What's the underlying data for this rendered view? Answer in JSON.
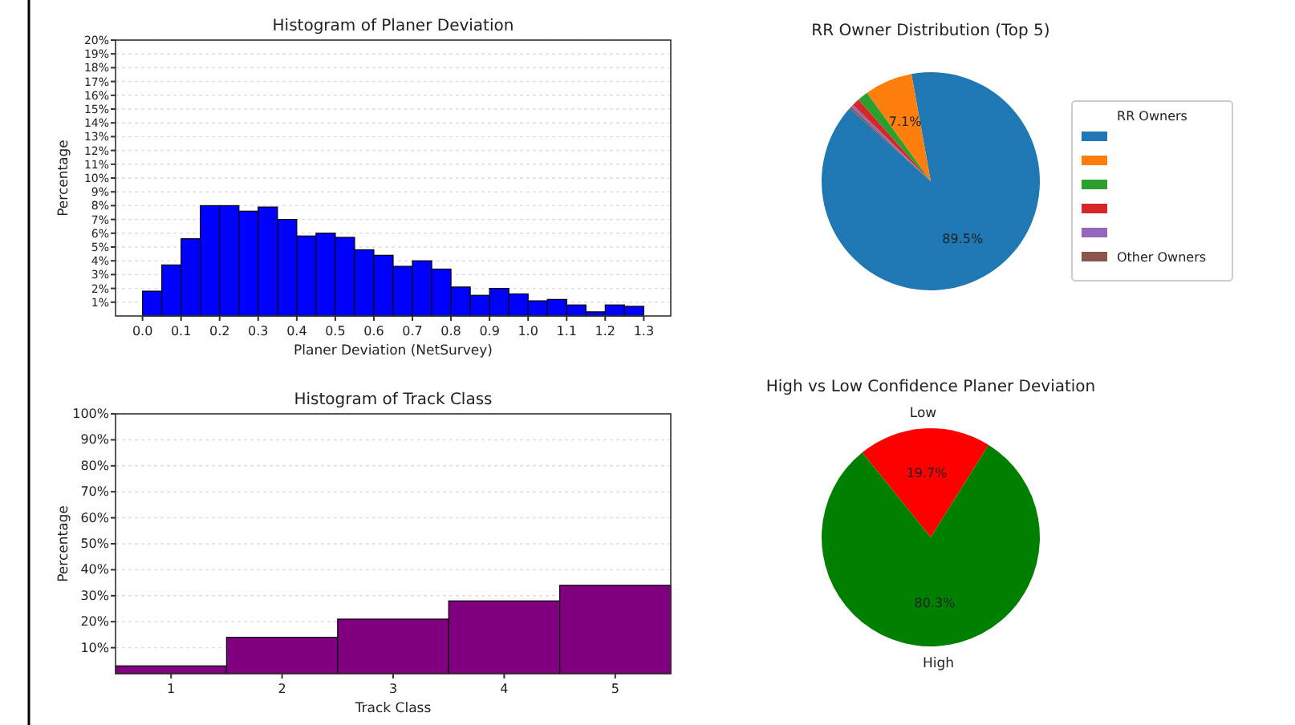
{
  "chart_data": [
    {
      "type": "histogram",
      "title": "Histogram of Planer Deviation",
      "xlabel": "Planer Deviation (NetSurvey)",
      "ylabel": "Percentage",
      "color": "#0000ff",
      "grid": "y",
      "bins": [
        0,
        0.05,
        0.1,
        0.15,
        0.2,
        0.25,
        0.3,
        0.35,
        0.4,
        0.45,
        0.5,
        0.55,
        0.6,
        0.65,
        0.7,
        0.75,
        0.8,
        0.85,
        0.9,
        0.95,
        1.0,
        1.05,
        1.1,
        1.15,
        1.2,
        1.25,
        1.3
      ],
      "values": [
        1.8,
        3.7,
        5.6,
        8.0,
        8.0,
        7.6,
        7.9,
        7.0,
        5.8,
        6.0,
        5.7,
        4.8,
        4.4,
        3.6,
        4.0,
        3.4,
        2.1,
        1.5,
        2.0,
        1.6,
        1.1,
        1.2,
        0.8,
        0.3,
        0.8,
        0.7
      ],
      "xlim": [
        -0.07,
        1.37
      ],
      "xticks": [
        {
          "value": 0,
          "label": "0.0"
        },
        {
          "value": 0.1,
          "label": "0.1"
        },
        {
          "value": 0.2,
          "label": "0.2"
        },
        {
          "value": 0.3,
          "label": "0.3"
        },
        {
          "value": 0.4,
          "label": "0.4"
        },
        {
          "value": 0.5,
          "label": "0.5"
        },
        {
          "value": 0.6,
          "label": "0.6"
        },
        {
          "value": 0.7,
          "label": "0.7"
        },
        {
          "value": 0.8,
          "label": "0.8"
        },
        {
          "value": 0.9,
          "label": "0.9"
        },
        {
          "value": 1.0,
          "label": "1.0"
        },
        {
          "value": 1.1,
          "label": "1.1"
        },
        {
          "value": 1.2,
          "label": "1.2"
        },
        {
          "value": 1.3,
          "label": "1.3"
        }
      ],
      "ylim": [
        0,
        20
      ],
      "yticks": [
        {
          "value": 1,
          "label": "1%"
        },
        {
          "value": 2,
          "label": "2%"
        },
        {
          "value": 3,
          "label": "3%"
        },
        {
          "value": 4,
          "label": "4%"
        },
        {
          "value": 5,
          "label": "5%"
        },
        {
          "value": 6,
          "label": "6%"
        },
        {
          "value": 7,
          "label": "7%"
        },
        {
          "value": 8,
          "label": "8%"
        },
        {
          "value": 9,
          "label": "9%"
        },
        {
          "value": 10,
          "label": "10%"
        },
        {
          "value": 11,
          "label": "11%"
        },
        {
          "value": 12,
          "label": "12%"
        },
        {
          "value": 13,
          "label": "13%"
        },
        {
          "value": 14,
          "label": "14%"
        },
        {
          "value": 15,
          "label": "15%"
        },
        {
          "value": 16,
          "label": "16%"
        },
        {
          "value": 17,
          "label": "17%"
        },
        {
          "value": 18,
          "label": "18%"
        },
        {
          "value": 19,
          "label": "19%"
        },
        {
          "value": 20,
          "label": "20%"
        }
      ]
    },
    {
      "type": "pie",
      "title": "RR Owner Distribution (Top 5)",
      "legend_title": "RR Owners",
      "legend": "right",
      "categories": [
        null,
        null,
        null,
        null,
        null,
        "Other Owners"
      ],
      "values": [
        89.5,
        7.1,
        1.6,
        1.1,
        0.4,
        0.3
      ],
      "colors": [
        "#1f77b4",
        "#ff7f0e",
        "#2ca02c",
        "#d62728",
        "#9467bd",
        "#8c564b"
      ],
      "value_labels": [
        "89.5%",
        "7.1%",
        null,
        null,
        null,
        null
      ]
    },
    {
      "type": "histogram",
      "title": "Histogram of Track Class",
      "xlabel": "Track Class",
      "ylabel": "Percentage",
      "color": "#800080",
      "grid": "y",
      "bins": [
        0.5,
        1.5,
        2.5,
        3.5,
        4.5,
        5.5
      ],
      "values": [
        3,
        14,
        21,
        28,
        34
      ],
      "xlim": [
        0.5,
        5.5
      ],
      "xticks": [
        1,
        2,
        3,
        4,
        5
      ],
      "ylim": [
        0,
        100
      ],
      "yticks": [
        {
          "value": 10,
          "label": "10%"
        },
        {
          "value": 20,
          "label": "20%"
        },
        {
          "value": 30,
          "label": "30%"
        },
        {
          "value": 40,
          "label": "40%"
        },
        {
          "value": 50,
          "label": "50%"
        },
        {
          "value": 60,
          "label": "60%"
        },
        {
          "value": 70,
          "label": "70%"
        },
        {
          "value": 80,
          "label": "80%"
        },
        {
          "value": 90,
          "label": "90%"
        },
        {
          "value": 100,
          "label": "100%"
        }
      ]
    },
    {
      "type": "pie",
      "title": "High vs Low Confidence Planer Deviation",
      "legend": false,
      "categories": [
        "Low",
        "High"
      ],
      "values": [
        19.7,
        80.3
      ],
      "colors": [
        "#ff0000",
        "#008000"
      ],
      "value_labels": [
        "19.7%",
        "80.3%"
      ]
    }
  ]
}
